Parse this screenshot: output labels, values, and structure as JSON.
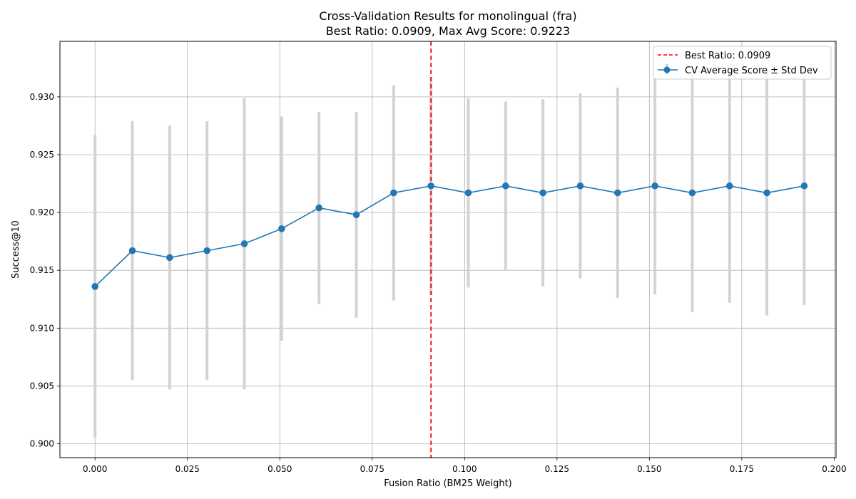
{
  "chart_data": {
    "type": "line",
    "title": "Cross-Validation Results for monolingual (fra)",
    "subtitle": "Best Ratio: 0.0909, Max Avg Score: 0.9223",
    "xlabel": "Fusion Ratio (BM25 Weight)",
    "ylabel": "Success@10",
    "xlim": [
      -0.0095,
      0.2005
    ],
    "ylim": [
      0.8988,
      0.9348
    ],
    "xticks": [
      0.0,
      0.025,
      0.05,
      0.075,
      0.1,
      0.125,
      0.15,
      0.175,
      0.2
    ],
    "xtick_labels": [
      "0.000",
      "0.025",
      "0.050",
      "0.075",
      "0.100",
      "0.125",
      "0.150",
      "0.175",
      "0.200"
    ],
    "yticks": [
      0.9,
      0.905,
      0.91,
      0.915,
      0.92,
      0.925,
      0.93
    ],
    "ytick_labels": [
      "0.900",
      "0.905",
      "0.910",
      "0.915",
      "0.920",
      "0.925",
      "0.930"
    ],
    "grid": true,
    "legend_position": "top-right",
    "best_ratio": 0.0909,
    "series": [
      {
        "name": "CV Average Score ± Std Dev",
        "color": "#1f77b4",
        "errorbar_color": "#d3d3d3",
        "x": [
          0.0,
          0.0101,
          0.0202,
          0.0303,
          0.0404,
          0.0505,
          0.0606,
          0.0707,
          0.0808,
          0.0909,
          0.101,
          0.1111,
          0.1212,
          0.1313,
          0.1414,
          0.1515,
          0.1616,
          0.1717,
          0.1818,
          0.1919
        ],
        "y": [
          0.9136,
          0.9167,
          0.9161,
          0.9167,
          0.9173,
          0.9186,
          0.9204,
          0.9198,
          0.9217,
          0.9223,
          0.9217,
          0.9223,
          0.9217,
          0.9223,
          0.9217,
          0.9223,
          0.9217,
          0.9223,
          0.9217,
          0.9223
        ],
        "std": [
          0.0131,
          0.0112,
          0.0114,
          0.0112,
          0.0126,
          0.0097,
          0.0083,
          0.0089,
          0.0093,
          0.0094,
          0.0082,
          0.0073,
          0.0081,
          0.008,
          0.0091,
          0.0094,
          0.0103,
          0.0101,
          0.0106,
          0.0103
        ]
      }
    ],
    "reference_line": {
      "name": "Best Ratio: 0.0909",
      "x": 0.0909,
      "color": "#ff0000",
      "style": "dashed"
    }
  }
}
